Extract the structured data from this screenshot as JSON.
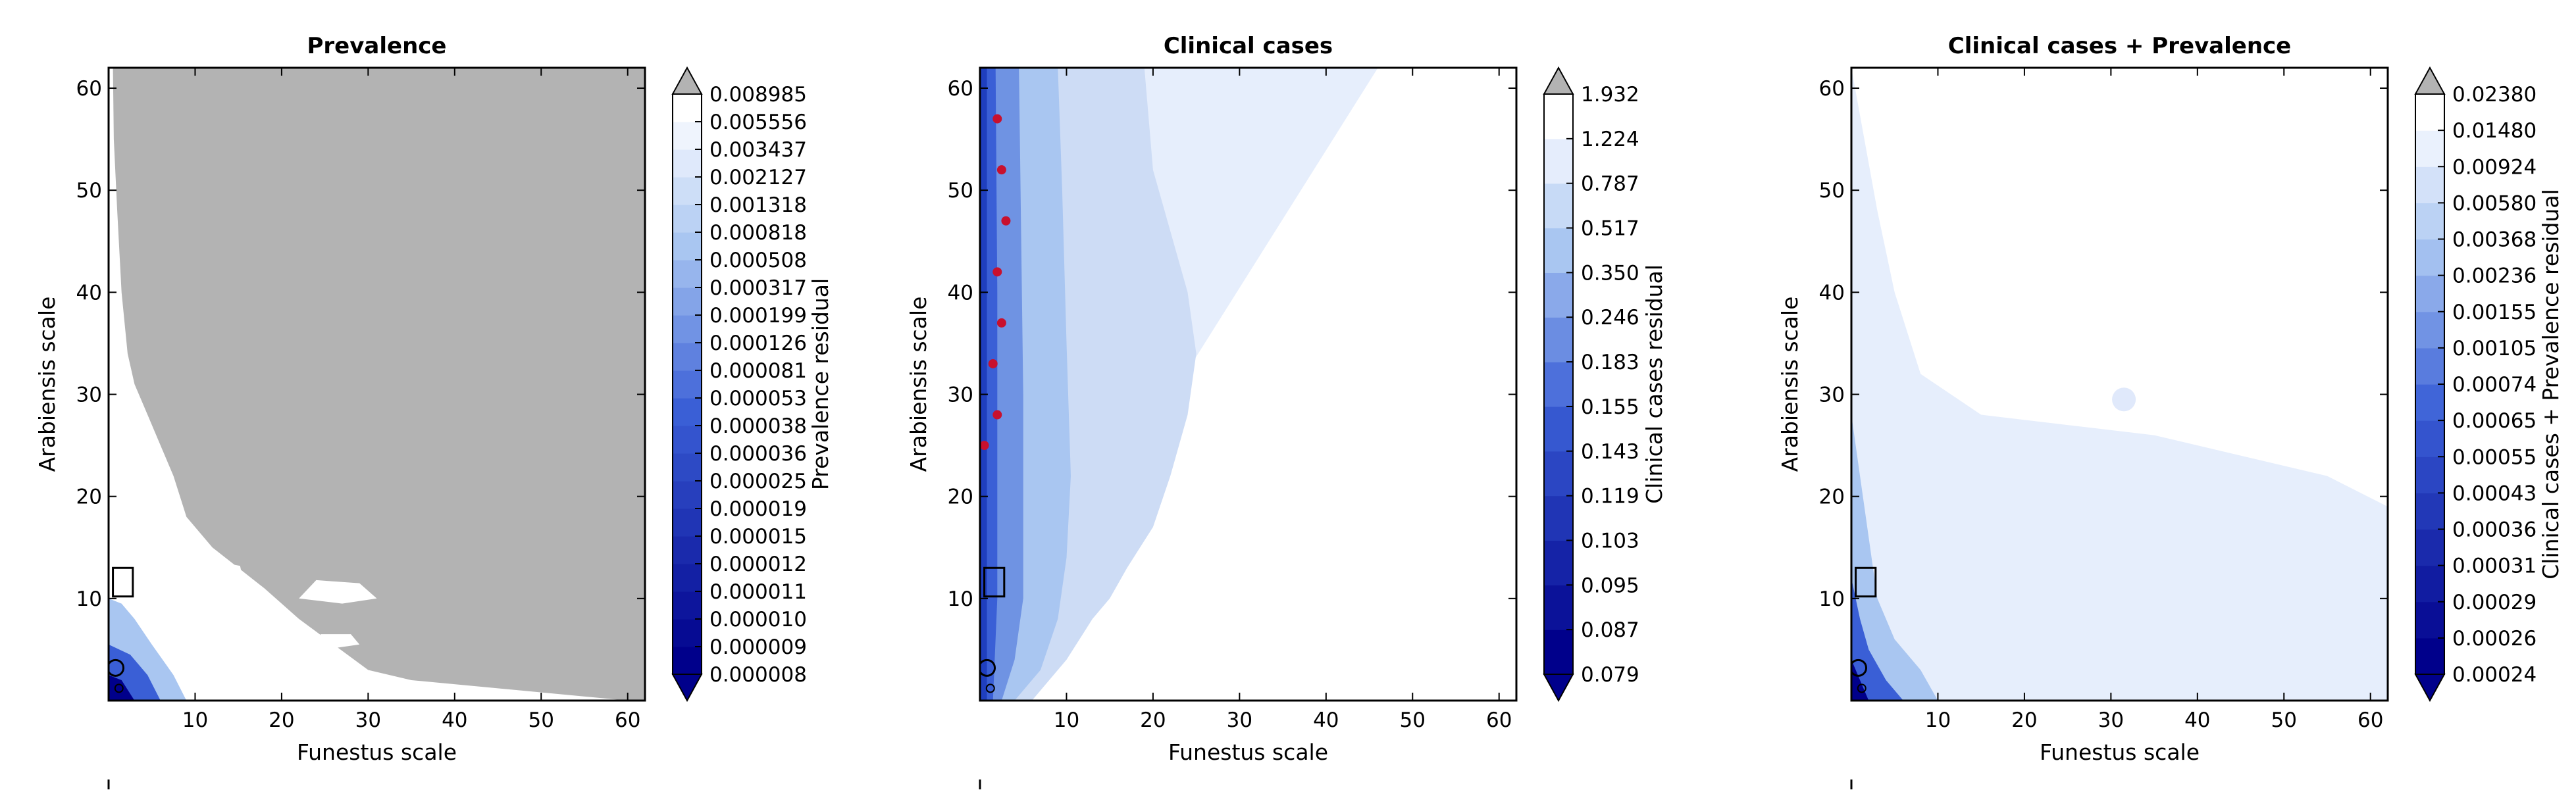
{
  "figure": {
    "panels": [
      {
        "title": "Prevalence",
        "colorbar_label": "Prevalence residual"
      },
      {
        "title": "Clinical cases",
        "colorbar_label": "Clinical cases residual"
      },
      {
        "title": "Clinical cases + Prevalence",
        "colorbar_label": "Clinical cases + Prevalence residual"
      }
    ],
    "xlabel": "Funestus scale",
    "ylabel": "Arabiensis scale",
    "colors": {
      "dark_blue": "#00008b",
      "mid_blue": "#3a5fd6",
      "light_blue": "#a9c6f1",
      "palest_blue": "#e6eefc",
      "over_gray": "#b3b3b3",
      "marker_red": "#c8102e"
    }
  },
  "chart_data": [
    {
      "type": "contour",
      "title": "Prevalence",
      "xlabel": "Funestus scale",
      "ylabel": "Arabiensis scale",
      "xlim": [
        0,
        62
      ],
      "ylim": [
        0,
        62
      ],
      "xticks": [
        "10",
        "20",
        "30",
        "40",
        "50",
        "60"
      ],
      "yticks": [
        "10",
        "20",
        "30",
        "40",
        "50",
        "60"
      ],
      "colorbar_label": "Prevalence residual",
      "colorbar_levels": [
        "0.000008",
        "0.000009",
        "0.000010",
        "0.000011",
        "0.000012",
        "0.000015",
        "0.000019",
        "0.000025",
        "0.000036",
        "0.000038",
        "0.000053",
        "0.000081",
        "0.000126",
        "0.000199",
        "0.000317",
        "0.000508",
        "0.000818",
        "0.001318",
        "0.002127",
        "0.003437",
        "0.005556",
        "0.008985"
      ]
    },
    {
      "type": "contour",
      "title": "Clinical cases",
      "xlabel": "Funestus scale",
      "ylabel": "Arabiensis scale",
      "xlim": [
        0,
        62
      ],
      "ylim": [
        0,
        62
      ],
      "xticks": [
        "10",
        "20",
        "30",
        "40",
        "50",
        "60"
      ],
      "yticks": [
        "10",
        "20",
        "30",
        "40",
        "50",
        "60"
      ],
      "colorbar_label": "Clinical cases residual",
      "colorbar_levels": [
        "0.079",
        "0.087",
        "0.095",
        "0.103",
        "0.119",
        "0.143",
        "0.155",
        "0.183",
        "0.246",
        "0.350",
        "0.517",
        "0.787",
        "1.224",
        "1.932"
      ]
    },
    {
      "type": "contour",
      "title": "Clinical cases + Prevalence",
      "xlabel": "Funestus scale",
      "ylabel": "Arabiensis scale",
      "xlim": [
        0,
        62
      ],
      "ylim": [
        0,
        62
      ],
      "xticks": [
        "10",
        "20",
        "30",
        "40",
        "50",
        "60"
      ],
      "yticks": [
        "10",
        "20",
        "30",
        "40",
        "50",
        "60"
      ],
      "colorbar_label": "Clinical cases + Prevalence residual",
      "colorbar_levels": [
        "0.00024",
        "0.00026",
        "0.00029",
        "0.00031",
        "0.00036",
        "0.00043",
        "0.00055",
        "0.00065",
        "0.00074",
        "0.00105",
        "0.00155",
        "0.00236",
        "0.00368",
        "0.00580",
        "0.00924",
        "0.01480",
        "0.02380"
      ]
    }
  ]
}
